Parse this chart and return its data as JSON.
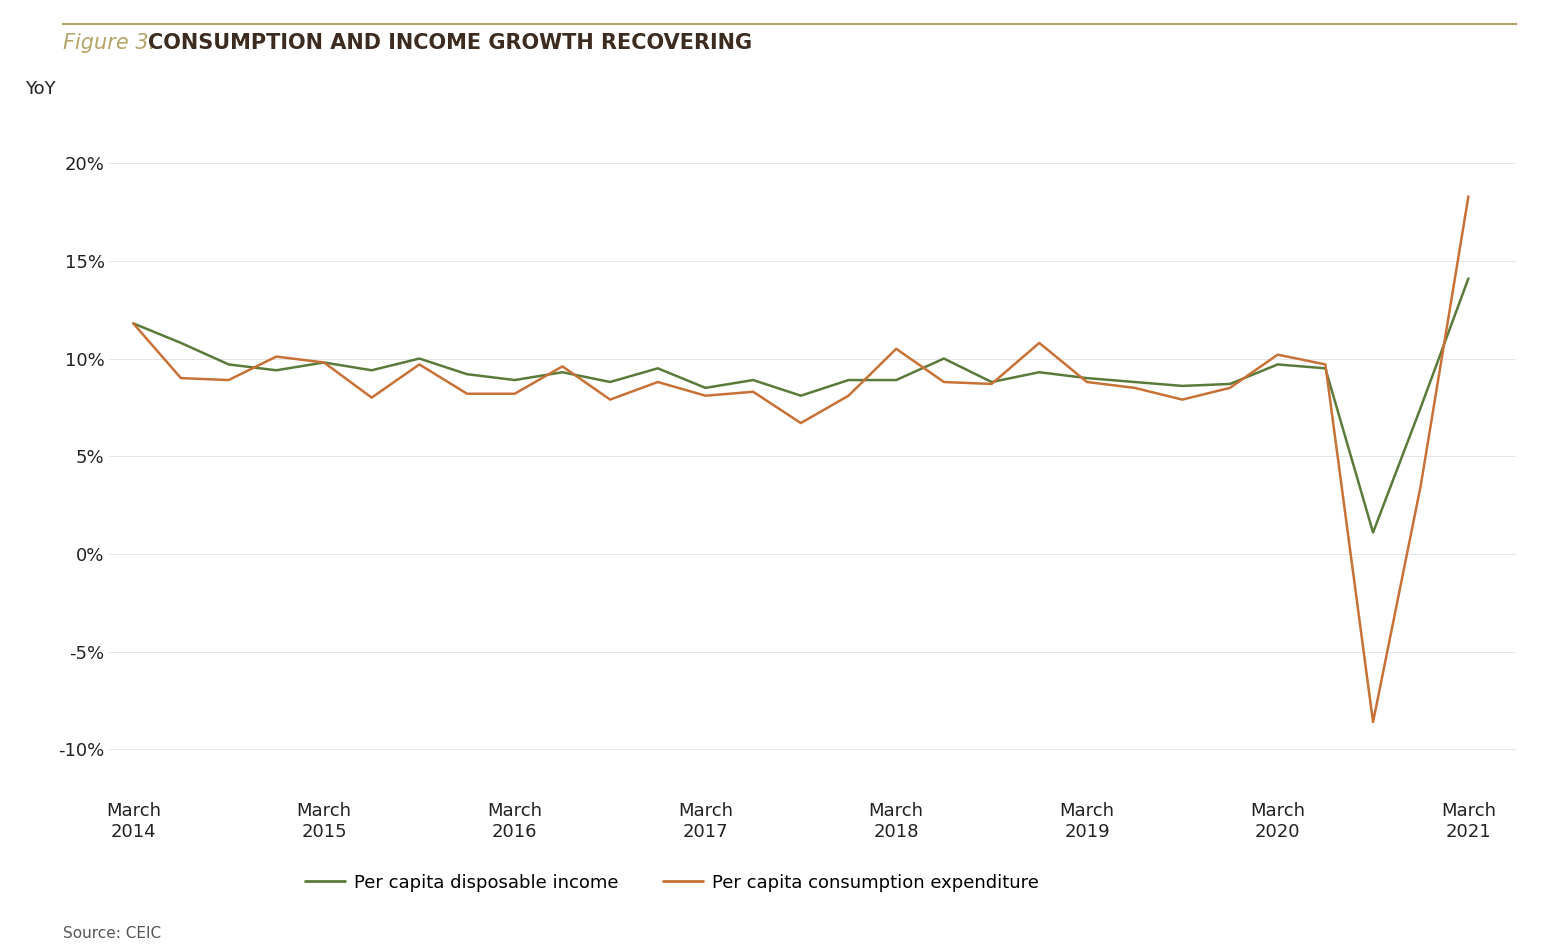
{
  "title_figure": "Figure 3.",
  "title_main": "CONSUMPTION AND INCOME GROWTH RECOVERING",
  "ylabel": "YoY",
  "source": "Source: CEIC",
  "figure_color": "#b5a469",
  "title_main_color": "#3d2b1f",
  "background_color": "#ffffff",
  "income_color": "#5a7a3a",
  "consumption_color": "#c87137",
  "income_label": "Per capita disposable income",
  "consumption_label": "Per capita consumption expenditure",
  "x_labels": [
    "March\n2014",
    "March\n2015",
    "March\n2016",
    "March\n2017",
    "March\n2018",
    "March\n2019",
    "March\n2020",
    "March\n2021"
  ],
  "x_tick_positions": [
    0,
    4,
    8,
    12,
    16,
    20,
    24,
    28
  ],
  "income_x": [
    0,
    1,
    2,
    3,
    4,
    5,
    6,
    7,
    8,
    9,
    10,
    11,
    12,
    13,
    14,
    15,
    16,
    17,
    18,
    19,
    20,
    21,
    22,
    23,
    24,
    25,
    26,
    27,
    28
  ],
  "income_y": [
    11.8,
    10.8,
    9.7,
    9.4,
    9.8,
    9.4,
    10.0,
    9.2,
    8.9,
    9.3,
    8.8,
    9.5,
    8.5,
    8.9,
    8.1,
    8.9,
    8.9,
    10.0,
    8.8,
    9.3,
    9.0,
    8.8,
    8.6,
    8.7,
    9.7,
    9.5,
    1.1,
    7.5,
    14.1
  ],
  "consumption_x": [
    0,
    1,
    2,
    3,
    4,
    5,
    6,
    7,
    8,
    9,
    10,
    11,
    12,
    13,
    14,
    15,
    16,
    17,
    18,
    19,
    20,
    21,
    22,
    23,
    24,
    25,
    26,
    27,
    28
  ],
  "consumption_y": [
    11.8,
    9.0,
    8.9,
    10.1,
    9.8,
    8.0,
    9.7,
    8.2,
    8.2,
    9.6,
    7.9,
    8.8,
    8.1,
    8.3,
    6.7,
    8.1,
    10.5,
    8.8,
    8.7,
    10.8,
    8.8,
    8.5,
    7.9,
    8.5,
    10.2,
    9.7,
    -8.6,
    3.5,
    18.3
  ],
  "ylim": [
    -12,
    23
  ],
  "yticks": [
    -10,
    -5,
    0,
    5,
    10,
    15,
    20
  ],
  "xlim": [
    -0.5,
    29.0
  ],
  "linewidth": 1.8
}
